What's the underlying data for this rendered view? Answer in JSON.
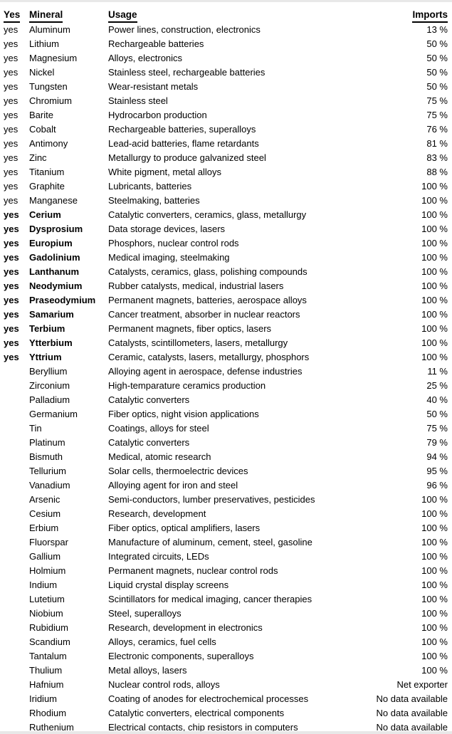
{
  "colors": {
    "text": "#000000",
    "background": "#ffffff",
    "edge_strip": "#e8e8e8"
  },
  "table": {
    "headers": {
      "yes": "Yes",
      "mineral": "Mineral",
      "usage": "Usage",
      "imports": "Imports"
    },
    "rows": [
      {
        "yes": "yes",
        "mineral": "Aluminum",
        "usage": "Power lines, construction, electronics",
        "imports": "13 %",
        "bold": false
      },
      {
        "yes": "yes",
        "mineral": "Lithium",
        "usage": "Rechargeable batteries",
        "imports": "50 %",
        "bold": false
      },
      {
        "yes": "yes",
        "mineral": "Magnesium",
        "usage": "Alloys, electronics",
        "imports": "50 %",
        "bold": false
      },
      {
        "yes": "yes",
        "mineral": "Nickel",
        "usage": "Stainless steel, rechargeable batteries",
        "imports": "50 %",
        "bold": false
      },
      {
        "yes": "yes",
        "mineral": "Tungsten",
        "usage": "Wear-resistant metals",
        "imports": "50 %",
        "bold": false
      },
      {
        "yes": "yes",
        "mineral": "Chromium",
        "usage": "Stainless steel",
        "imports": "75 %",
        "bold": false
      },
      {
        "yes": "yes",
        "mineral": "Barite",
        "usage": "Hydrocarbon production",
        "imports": "75 %",
        "bold": false
      },
      {
        "yes": "yes",
        "mineral": "Cobalt",
        "usage": "Rechargeable batteries, superalloys",
        "imports": "76 %",
        "bold": false
      },
      {
        "yes": "yes",
        "mineral": "Antimony",
        "usage": "Lead-acid batteries, flame retardants",
        "imports": "81 %",
        "bold": false
      },
      {
        "yes": "yes",
        "mineral": "Zinc",
        "usage": "Metallurgy to produce galvanized steel",
        "imports": "83 %",
        "bold": false
      },
      {
        "yes": "yes",
        "mineral": "Titanium",
        "usage": "White pigment, metal alloys",
        "imports": "88 %",
        "bold": false
      },
      {
        "yes": "yes",
        "mineral": "Graphite",
        "usage": "Lubricants, batteries",
        "imports": "100 %",
        "bold": false
      },
      {
        "yes": "yes",
        "mineral": "Manganese",
        "usage": "Steelmaking, batteries",
        "imports": "100 %",
        "bold": false
      },
      {
        "yes": "yes",
        "mineral": "Cerium",
        "usage": "Catalytic converters, ceramics, glass, metallurgy",
        "imports": "100 %",
        "bold": true
      },
      {
        "yes": "yes",
        "mineral": "Dysprosium",
        "usage": "Data storage devices, lasers",
        "imports": "100 %",
        "bold": true
      },
      {
        "yes": "yes",
        "mineral": "Europium",
        "usage": "Phosphors, nuclear control rods",
        "imports": "100 %",
        "bold": true
      },
      {
        "yes": "yes",
        "mineral": "Gadolinium",
        "usage": "Medical imaging, steelmaking",
        "imports": "100 %",
        "bold": true
      },
      {
        "yes": "yes",
        "mineral": "Lanthanum",
        "usage": "Catalysts, ceramics, glass, polishing compounds",
        "imports": "100 %",
        "bold": true
      },
      {
        "yes": "yes",
        "mineral": "Neodymium",
        "usage": "Rubber catalysts, medical, industrial lasers",
        "imports": "100 %",
        "bold": true
      },
      {
        "yes": "yes",
        "mineral": "Praseodymium",
        "usage": "Permanent magnets, batteries, aerospace alloys",
        "imports": "100 %",
        "bold": true
      },
      {
        "yes": "yes",
        "mineral": "Samarium",
        "usage": "Cancer treatment, absorber in nuclear reactors",
        "imports": "100 %",
        "bold": true
      },
      {
        "yes": "yes",
        "mineral": "Terbium",
        "usage": "Permanent magnets, fiber optics, lasers",
        "imports": "100 %",
        "bold": true
      },
      {
        "yes": "yes",
        "mineral": "Ytterbium",
        "usage": "Catalysts, scintillometers, lasers, metallurgy",
        "imports": "100 %",
        "bold": true
      },
      {
        "yes": "yes",
        "mineral": "Yttrium",
        "usage": "Ceramic, catalysts, lasers, metallurgy, phosphors",
        "imports": "100 %",
        "bold": true
      },
      {
        "yes": "",
        "mineral": "Beryllium",
        "usage": "Alloying agent in aerospace, defense industries",
        "imports": "11 %",
        "bold": false
      },
      {
        "yes": "",
        "mineral": "Zirconium",
        "usage": "High-temparature ceramics production",
        "imports": "25 %",
        "bold": false
      },
      {
        "yes": "",
        "mineral": "Palladium",
        "usage": "Catalytic converters",
        "imports": "40 %",
        "bold": false
      },
      {
        "yes": "",
        "mineral": "Germanium",
        "usage": "Fiber optics, night vision applications",
        "imports": "50 %",
        "bold": false
      },
      {
        "yes": "",
        "mineral": "Tin",
        "usage": "Coatings, alloys for steel",
        "imports": "75 %",
        "bold": false
      },
      {
        "yes": "",
        "mineral": "Platinum",
        "usage": "Catalytic converters",
        "imports": "79 %",
        "bold": false
      },
      {
        "yes": "",
        "mineral": "Bismuth",
        "usage": "Medical, atomic research",
        "imports": "94 %",
        "bold": false
      },
      {
        "yes": "",
        "mineral": "Tellurium",
        "usage": "Solar cells, thermoelectric devices",
        "imports": "95 %",
        "bold": false
      },
      {
        "yes": "",
        "mineral": "Vanadium",
        "usage": "Alloying agent for iron and steel",
        "imports": "96 %",
        "bold": false
      },
      {
        "yes": "",
        "mineral": "Arsenic",
        "usage": "Semi-conductors, lumber preservatives, pesticides",
        "imports": "100 %",
        "bold": false
      },
      {
        "yes": "",
        "mineral": "Cesium",
        "usage": "Research, development",
        "imports": "100 %",
        "bold": false
      },
      {
        "yes": "",
        "mineral": "Erbium",
        "usage": "Fiber optics, optical amplifiers, lasers",
        "imports": "100 %",
        "bold": false
      },
      {
        "yes": "",
        "mineral": "Fluorspar",
        "usage": "Manufacture of aluminum, cement, steel, gasoline",
        "imports": "100 %",
        "bold": false
      },
      {
        "yes": "",
        "mineral": "Gallium",
        "usage": "Integrated circuits, LEDs",
        "imports": "100 %",
        "bold": false
      },
      {
        "yes": "",
        "mineral": "Holmium",
        "usage": "Permanent magnets, nuclear control rods",
        "imports": "100 %",
        "bold": false
      },
      {
        "yes": "",
        "mineral": "Indium",
        "usage": "Liquid crystal display screens",
        "imports": "100 %",
        "bold": false
      },
      {
        "yes": "",
        "mineral": "Lutetium",
        "usage": "Scintillators for medical imaging, cancer therapies",
        "imports": "100 %",
        "bold": false
      },
      {
        "yes": "",
        "mineral": "Niobium",
        "usage": "Steel, superalloys",
        "imports": "100 %",
        "bold": false
      },
      {
        "yes": "",
        "mineral": "Rubidium",
        "usage": "Research, development in electronics",
        "imports": "100 %",
        "bold": false
      },
      {
        "yes": "",
        "mineral": "Scandium",
        "usage": "Alloys, ceramics, fuel cells",
        "imports": "100 %",
        "bold": false
      },
      {
        "yes": "",
        "mineral": "Tantalum",
        "usage": "Electronic components, superalloys",
        "imports": "100 %",
        "bold": false
      },
      {
        "yes": "",
        "mineral": "Thulium",
        "usage": "Metal alloys, lasers",
        "imports": "100 %",
        "bold": false
      },
      {
        "yes": "",
        "mineral": "Hafnium",
        "usage": "Nuclear control rods, alloys",
        "imports": "Net exporter",
        "bold": false
      },
      {
        "yes": "",
        "mineral": "Iridium",
        "usage": "Coating of anodes for electrochemical processes",
        "imports": "No data available",
        "bold": false
      },
      {
        "yes": "",
        "mineral": "Rhodium",
        "usage": "Catalytic converters, electrical components",
        "imports": "No data available",
        "bold": false
      },
      {
        "yes": "",
        "mineral": "Ruthenium",
        "usage": "Electrical contacts, chip resistors in computers",
        "imports": "No data available",
        "bold": false
      }
    ]
  }
}
